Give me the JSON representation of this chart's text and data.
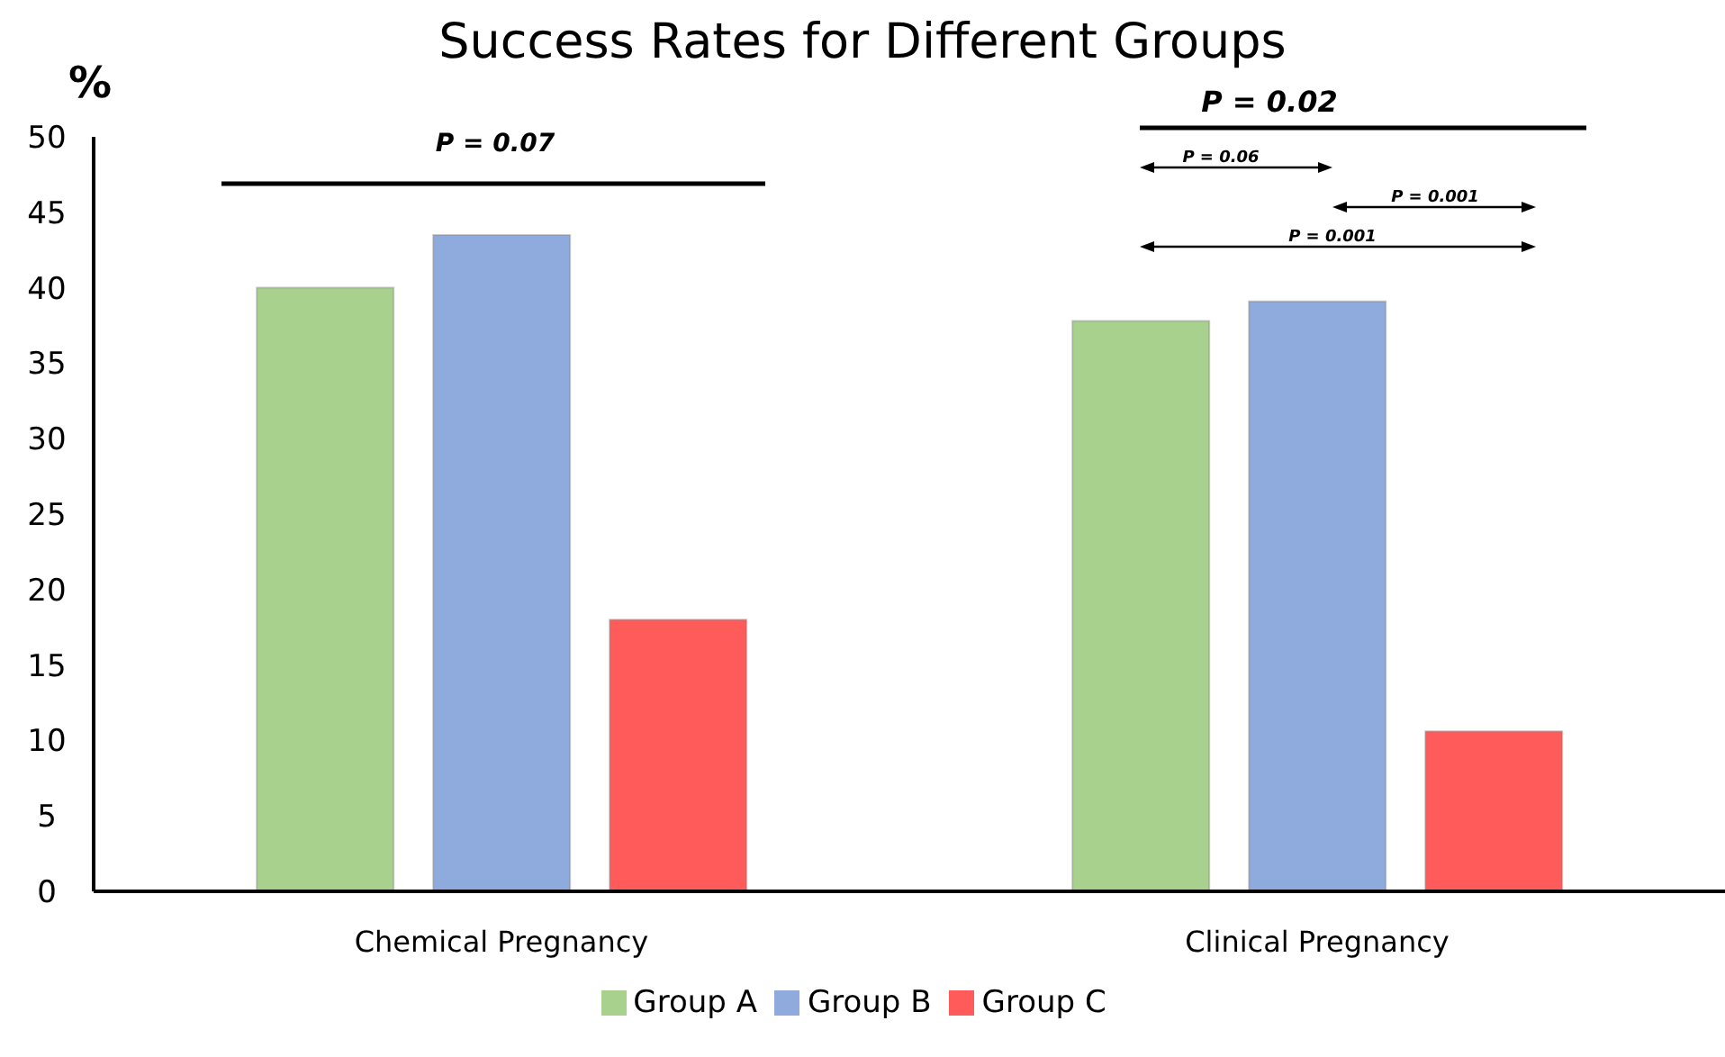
{
  "chart_data": {
    "type": "bar",
    "title": "Success Rates for Different Groups",
    "ylabel": "%",
    "categories": [
      "Chemical Pregnancy",
      "Clinical Pregnancy"
    ],
    "series": [
      {
        "name": "Group A",
        "color": "#a9d18e",
        "values": [
          40,
          37.8
        ]
      },
      {
        "name": "Group B",
        "color": "#8faadc",
        "values": [
          43.5,
          39.1
        ]
      },
      {
        "name": "Group C",
        "color": "#ff5b5b",
        "values": [
          18,
          10.6
        ]
      }
    ],
    "ylim": [
      0,
      50
    ],
    "yticks": [
      0,
      5,
      10,
      15,
      20,
      25,
      30,
      35,
      40,
      45,
      50
    ],
    "grid": false,
    "legend": "bottom",
    "annotations": [
      "P = 0.07",
      "P = 0.02",
      "P = 0.06",
      "P = 0.001",
      "P = 0.001"
    ]
  }
}
